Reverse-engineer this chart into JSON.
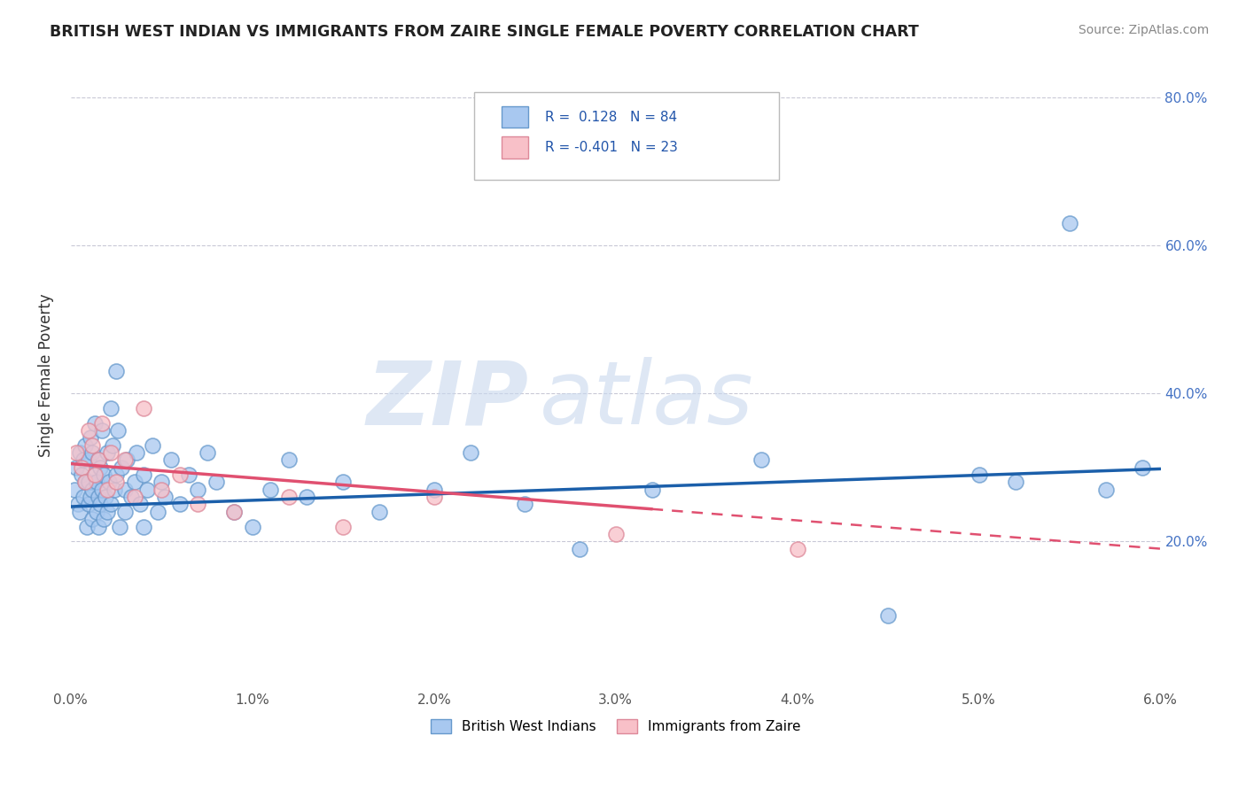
{
  "title": "BRITISH WEST INDIAN VS IMMIGRANTS FROM ZAIRE SINGLE FEMALE POVERTY CORRELATION CHART",
  "source": "Source: ZipAtlas.com",
  "ylabel": "Single Female Poverty",
  "series1_label": "British West Indians",
  "series1_color": "#A8C8F0",
  "series1_edge_color": "#6699CC",
  "series1_line_color": "#1B5FAA",
  "series1_R": 0.128,
  "series1_N": 84,
  "series2_label": "Immigrants from Zaire",
  "series2_color": "#F8C0C8",
  "series2_edge_color": "#DD8899",
  "series2_line_color": "#E05070",
  "series2_R": -0.401,
  "series2_N": 23,
  "xmin": 0.0,
  "xmax": 0.06,
  "ymin": 0.0,
  "ymax": 0.85,
  "yticks": [
    0.0,
    0.2,
    0.4,
    0.6,
    0.8
  ],
  "ytick_labels": [
    "",
    "20.0%",
    "40.0%",
    "60.0%",
    "80.0%"
  ],
  "background_color": "#FFFFFF",
  "grid_color": "#BBBBCC",
  "series1_x": [
    0.0002,
    0.0003,
    0.0004,
    0.0005,
    0.0005,
    0.0006,
    0.0007,
    0.0007,
    0.0008,
    0.0008,
    0.0009,
    0.001,
    0.001,
    0.001,
    0.0011,
    0.0011,
    0.0012,
    0.0012,
    0.0012,
    0.0013,
    0.0013,
    0.0014,
    0.0014,
    0.0015,
    0.0015,
    0.0015,
    0.0016,
    0.0016,
    0.0017,
    0.0017,
    0.0018,
    0.0018,
    0.0019,
    0.002,
    0.002,
    0.0021,
    0.0022,
    0.0022,
    0.0023,
    0.0024,
    0.0025,
    0.0025,
    0.0026,
    0.0027,
    0.0028,
    0.003,
    0.003,
    0.0031,
    0.0033,
    0.0035,
    0.0036,
    0.0038,
    0.004,
    0.004,
    0.0042,
    0.0045,
    0.0048,
    0.005,
    0.0052,
    0.0055,
    0.006,
    0.0065,
    0.007,
    0.0075,
    0.008,
    0.009,
    0.01,
    0.011,
    0.012,
    0.013,
    0.015,
    0.017,
    0.02,
    0.022,
    0.025,
    0.028,
    0.032,
    0.038,
    0.045,
    0.05,
    0.052,
    0.055,
    0.057,
    0.059
  ],
  "series1_y": [
    0.27,
    0.3,
    0.25,
    0.32,
    0.24,
    0.29,
    0.26,
    0.31,
    0.28,
    0.33,
    0.22,
    0.25,
    0.28,
    0.31,
    0.26,
    0.34,
    0.23,
    0.27,
    0.32,
    0.36,
    0.29,
    0.24,
    0.28,
    0.22,
    0.26,
    0.31,
    0.25,
    0.3,
    0.27,
    0.35,
    0.23,
    0.29,
    0.26,
    0.32,
    0.24,
    0.28,
    0.38,
    0.25,
    0.33,
    0.27,
    0.43,
    0.29,
    0.35,
    0.22,
    0.3,
    0.24,
    0.27,
    0.31,
    0.26,
    0.28,
    0.32,
    0.25,
    0.22,
    0.29,
    0.27,
    0.33,
    0.24,
    0.28,
    0.26,
    0.31,
    0.25,
    0.29,
    0.27,
    0.32,
    0.28,
    0.24,
    0.22,
    0.27,
    0.31,
    0.26,
    0.28,
    0.24,
    0.27,
    0.32,
    0.25,
    0.19,
    0.27,
    0.31,
    0.1,
    0.29,
    0.28,
    0.63,
    0.27,
    0.3
  ],
  "series2_x": [
    0.0003,
    0.0006,
    0.0008,
    0.001,
    0.0012,
    0.0013,
    0.0015,
    0.0017,
    0.002,
    0.0022,
    0.0025,
    0.003,
    0.0035,
    0.004,
    0.005,
    0.006,
    0.007,
    0.009,
    0.012,
    0.015,
    0.02,
    0.03,
    0.04
  ],
  "series2_y": [
    0.32,
    0.3,
    0.28,
    0.35,
    0.33,
    0.29,
    0.31,
    0.36,
    0.27,
    0.32,
    0.28,
    0.31,
    0.26,
    0.38,
    0.27,
    0.29,
    0.25,
    0.24,
    0.26,
    0.22,
    0.26,
    0.21,
    0.19
  ],
  "line1_x0": 0.0,
  "line1_y0": 0.247,
  "line1_x1": 0.06,
  "line1_y1": 0.298,
  "line2_x0": 0.0,
  "line2_y0": 0.305,
  "line2_x1": 0.06,
  "line2_y1": 0.19,
  "line2_solid_end": 0.032
}
